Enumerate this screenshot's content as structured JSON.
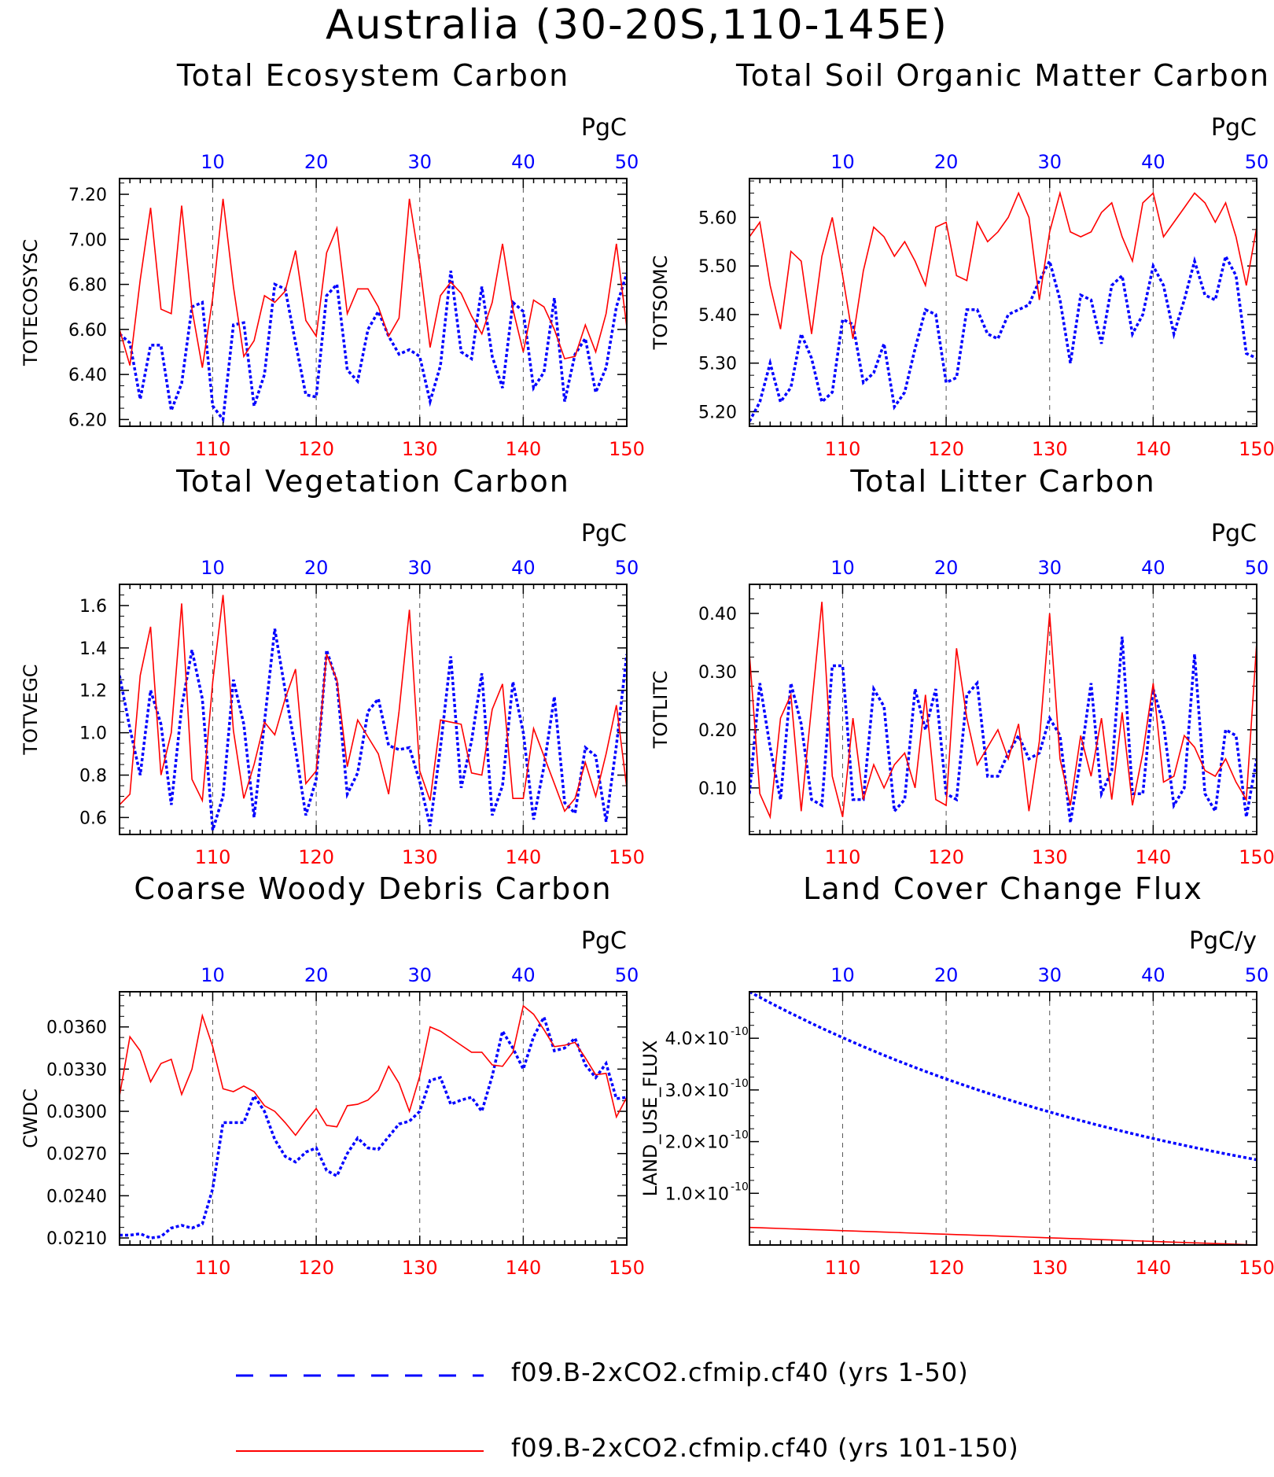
{
  "title": "Australia (30-20S,110-145E)",
  "legend": [
    {
      "label": "f09.B-2xCO2.cfmip.cf40 (yrs 1-50)",
      "color": "#0000ff",
      "style": "dashed"
    },
    {
      "label": "f09.B-2xCO2.cfmip.cf40 (yrs 101-150)",
      "color": "#ff0000",
      "style": "solid"
    }
  ],
  "colors": {
    "series_a": "#0000ff",
    "series_b": "#ff0000",
    "grid": "#555555"
  },
  "chart_data": [
    {
      "type": "line",
      "title": "Total Ecosystem Carbon",
      "ylabel": "TOTECOSYSC",
      "units": "PgC",
      "ylim": [
        6.17,
        7.27
      ],
      "yticks": [
        6.2,
        6.4,
        6.6,
        6.8,
        7.0,
        7.2
      ],
      "ytick_labels": [
        "6.20",
        "6.40",
        "6.60",
        "6.80",
        "7.00",
        "7.20"
      ],
      "top_axis": {
        "range": [
          1,
          50
        ],
        "ticks": [
          10,
          20,
          30,
          40,
          50
        ]
      },
      "bottom_axis": {
        "range": [
          101,
          150
        ],
        "ticks": [
          110,
          120,
          130,
          140,
          150
        ]
      },
      "grid": "vertical dashed at 110, 120, 130, 140",
      "series": [
        {
          "axis": "top",
          "values": [
            6.58,
            6.54,
            6.29,
            6.53,
            6.53,
            6.24,
            6.36,
            6.7,
            6.72,
            6.26,
            6.2,
            6.62,
            6.63,
            6.26,
            6.4,
            6.8,
            6.78,
            6.54,
            6.31,
            6.3,
            6.75,
            6.8,
            6.42,
            6.37,
            6.6,
            6.68,
            6.57,
            6.49,
            6.51,
            6.48,
            6.28,
            6.44,
            6.86,
            6.5,
            6.47,
            6.79,
            6.48,
            6.34,
            6.72,
            6.68,
            6.34,
            6.41,
            6.74,
            6.28,
            6.49,
            6.56,
            6.32,
            6.43,
            6.7,
            6.85
          ]
        },
        {
          "axis": "bottom",
          "values": [
            6.6,
            6.44,
            6.82,
            7.14,
            6.69,
            6.67,
            7.15,
            6.69,
            6.43,
            6.74,
            7.18,
            6.79,
            6.48,
            6.55,
            6.75,
            6.72,
            6.77,
            6.95,
            6.64,
            6.57,
            6.94,
            7.05,
            6.67,
            6.78,
            6.78,
            6.7,
            6.57,
            6.65,
            7.18,
            6.89,
            6.52,
            6.75,
            6.81,
            6.76,
            6.66,
            6.58,
            6.72,
            6.98,
            6.69,
            6.5,
            6.73,
            6.7,
            6.6,
            6.47,
            6.48,
            6.62,
            6.5,
            6.67,
            6.98,
            6.61
          ]
        }
      ]
    },
    {
      "type": "line",
      "title": "Total Soil Organic Matter Carbon",
      "ylabel": "TOTSOMC",
      "units": "PgC",
      "ylim": [
        5.17,
        5.68
      ],
      "yticks": [
        5.2,
        5.3,
        5.4,
        5.5,
        5.6
      ],
      "ytick_labels": [
        "5.20",
        "5.30",
        "5.40",
        "5.50",
        "5.60"
      ],
      "top_axis": {
        "range": [
          1,
          50
        ],
        "ticks": [
          10,
          20,
          30,
          40,
          50
        ]
      },
      "bottom_axis": {
        "range": [
          101,
          150
        ],
        "ticks": [
          110,
          120,
          130,
          140,
          150
        ]
      },
      "grid": "vertical dashed at 110, 120, 130, 140",
      "series": [
        {
          "axis": "top",
          "values": [
            5.18,
            5.22,
            5.3,
            5.22,
            5.25,
            5.36,
            5.31,
            5.22,
            5.24,
            5.39,
            5.38,
            5.26,
            5.28,
            5.34,
            5.21,
            5.24,
            5.33,
            5.41,
            5.4,
            5.26,
            5.27,
            5.41,
            5.41,
            5.36,
            5.35,
            5.4,
            5.41,
            5.42,
            5.47,
            5.51,
            5.43,
            5.3,
            5.44,
            5.43,
            5.34,
            5.46,
            5.48,
            5.36,
            5.4,
            5.5,
            5.46,
            5.36,
            5.43,
            5.51,
            5.44,
            5.43,
            5.52,
            5.48,
            5.32,
            5.31
          ]
        },
        {
          "axis": "bottom",
          "values": [
            5.56,
            5.59,
            5.46,
            5.37,
            5.53,
            5.51,
            5.36,
            5.52,
            5.6,
            5.48,
            5.35,
            5.49,
            5.58,
            5.56,
            5.52,
            5.55,
            5.51,
            5.46,
            5.58,
            5.59,
            5.48,
            5.47,
            5.59,
            5.55,
            5.57,
            5.6,
            5.65,
            5.6,
            5.43,
            5.57,
            5.65,
            5.57,
            5.56,
            5.57,
            5.61,
            5.63,
            5.56,
            5.51,
            5.63,
            5.65,
            5.56,
            5.59,
            5.62,
            5.65,
            5.63,
            5.59,
            5.63,
            5.56,
            5.46,
            5.58
          ]
        }
      ]
    },
    {
      "type": "line",
      "title": "Total Vegetation Carbon",
      "ylabel": "TOTVEGC",
      "units": "PgC",
      "ylim": [
        0.52,
        1.7
      ],
      "yticks": [
        0.6,
        0.8,
        1.0,
        1.2,
        1.4,
        1.6
      ],
      "ytick_labels": [
        "0.6",
        "0.8",
        "1.0",
        "1.2",
        "1.4",
        "1.6"
      ],
      "top_axis": {
        "range": [
          1,
          50
        ],
        "ticks": [
          10,
          20,
          30,
          40,
          50
        ]
      },
      "bottom_axis": {
        "range": [
          101,
          150
        ],
        "ticks": [
          110,
          120,
          130,
          140,
          150
        ]
      },
      "grid": "vertical dashed at 110, 120, 130, 140",
      "series": [
        {
          "axis": "top",
          "values": [
            1.27,
            1.02,
            0.8,
            1.2,
            1.04,
            0.66,
            1.12,
            1.39,
            1.16,
            0.54,
            0.7,
            1.25,
            1.04,
            0.6,
            1.05,
            1.49,
            1.2,
            0.92,
            0.61,
            0.78,
            1.39,
            1.24,
            0.71,
            0.81,
            1.1,
            1.16,
            0.94,
            0.92,
            0.93,
            0.77,
            0.56,
            0.93,
            1.36,
            0.74,
            0.96,
            1.28,
            0.61,
            0.75,
            1.24,
            1.0,
            0.59,
            0.84,
            1.17,
            0.67,
            0.62,
            0.93,
            0.89,
            0.58,
            0.94,
            1.37
          ]
        },
        {
          "axis": "bottom",
          "values": [
            0.66,
            0.71,
            1.27,
            1.5,
            0.8,
            1.0,
            1.61,
            0.78,
            0.68,
            1.24,
            1.65,
            1.01,
            0.69,
            0.85,
            1.05,
            0.99,
            1.16,
            1.3,
            0.76,
            0.82,
            1.37,
            1.25,
            0.84,
            1.06,
            0.98,
            0.9,
            0.71,
            1.1,
            1.58,
            0.82,
            0.68,
            1.06,
            1.05,
            1.04,
            0.81,
            0.8,
            1.11,
            1.23,
            0.69,
            0.69,
            1.02,
            0.89,
            0.76,
            0.63,
            0.69,
            0.86,
            0.7,
            0.9,
            1.13,
            0.74
          ]
        }
      ]
    },
    {
      "type": "line",
      "title": "Total Litter Carbon",
      "ylabel": "TOTLITC",
      "units": "PgC",
      "ylim": [
        0.02,
        0.45
      ],
      "yticks": [
        0.1,
        0.2,
        0.3,
        0.4
      ],
      "ytick_labels": [
        "0.10",
        "0.20",
        "0.30",
        "0.40"
      ],
      "top_axis": {
        "range": [
          1,
          50
        ],
        "ticks": [
          10,
          20,
          30,
          40,
          50
        ]
      },
      "bottom_axis": {
        "range": [
          101,
          150
        ],
        "ticks": [
          110,
          120,
          130,
          140,
          150
        ]
      },
      "grid": "vertical dashed at 110, 120, 130, 140",
      "series": [
        {
          "axis": "top",
          "values": [
            0.09,
            0.28,
            0.17,
            0.08,
            0.28,
            0.21,
            0.08,
            0.07,
            0.31,
            0.31,
            0.08,
            0.08,
            0.27,
            0.24,
            0.06,
            0.08,
            0.27,
            0.2,
            0.27,
            0.09,
            0.08,
            0.26,
            0.28,
            0.12,
            0.12,
            0.16,
            0.19,
            0.15,
            0.16,
            0.22,
            0.19,
            0.04,
            0.15,
            0.28,
            0.09,
            0.13,
            0.36,
            0.09,
            0.09,
            0.27,
            0.21,
            0.07,
            0.1,
            0.33,
            0.09,
            0.06,
            0.2,
            0.19,
            0.05,
            0.15
          ]
        },
        {
          "axis": "bottom",
          "values": [
            0.33,
            0.09,
            0.05,
            0.22,
            0.26,
            0.06,
            0.24,
            0.42,
            0.12,
            0.05,
            0.22,
            0.08,
            0.14,
            0.1,
            0.14,
            0.16,
            0.1,
            0.26,
            0.08,
            0.07,
            0.34,
            0.22,
            0.14,
            0.17,
            0.2,
            0.15,
            0.21,
            0.06,
            0.18,
            0.4,
            0.15,
            0.07,
            0.19,
            0.12,
            0.22,
            0.08,
            0.23,
            0.07,
            0.16,
            0.28,
            0.11,
            0.12,
            0.19,
            0.17,
            0.13,
            0.12,
            0.15,
            0.11,
            0.08,
            0.35
          ]
        }
      ]
    },
    {
      "type": "line",
      "title": "Coarse Woody Debris Carbon",
      "ylabel": "CWDC",
      "units": "PgC",
      "ylim": [
        0.0205,
        0.0385
      ],
      "yticks": [
        0.021,
        0.024,
        0.027,
        0.03,
        0.033,
        0.036
      ],
      "ytick_labels": [
        "0.0210",
        "0.0240",
        "0.0270",
        "0.0300",
        "0.0330",
        "0.0360"
      ],
      "top_axis": {
        "range": [
          1,
          50
        ],
        "ticks": [
          10,
          20,
          30,
          40,
          50
        ]
      },
      "bottom_axis": {
        "range": [
          101,
          150
        ],
        "ticks": [
          110,
          120,
          130,
          140,
          150
        ]
      },
      "grid": "vertical dashed at 110, 120, 130, 140",
      "series": [
        {
          "axis": "top",
          "values": [
            0.0212,
            0.0212,
            0.0213,
            0.021,
            0.0211,
            0.0217,
            0.0219,
            0.0217,
            0.022,
            0.0245,
            0.0292,
            0.0292,
            0.0292,
            0.0311,
            0.03,
            0.028,
            0.0268,
            0.0264,
            0.0271,
            0.0274,
            0.0258,
            0.0254,
            0.027,
            0.0281,
            0.0274,
            0.0273,
            0.0282,
            0.0291,
            0.0293,
            0.03,
            0.0322,
            0.0324,
            0.0305,
            0.0308,
            0.031,
            0.03,
            0.0325,
            0.0357,
            0.0345,
            0.033,
            0.0353,
            0.0367,
            0.0343,
            0.0345,
            0.0352,
            0.0333,
            0.0324,
            0.0334,
            0.0309,
            0.031
          ]
        },
        {
          "axis": "bottom",
          "values": [
            0.0311,
            0.0353,
            0.0343,
            0.0321,
            0.0334,
            0.0337,
            0.0312,
            0.033,
            0.0368,
            0.0346,
            0.0316,
            0.0314,
            0.0318,
            0.0314,
            0.0304,
            0.03,
            0.0292,
            0.0283,
            0.0293,
            0.0302,
            0.029,
            0.0289,
            0.0304,
            0.0305,
            0.0308,
            0.0315,
            0.0332,
            0.032,
            0.03,
            0.0325,
            0.036,
            0.0357,
            0.0352,
            0.0347,
            0.0342,
            0.0342,
            0.0333,
            0.0332,
            0.0342,
            0.0375,
            0.0369,
            0.0358,
            0.0346,
            0.0347,
            0.0349,
            0.0338,
            0.0326,
            0.0327,
            0.0296,
            0.031
          ]
        }
      ]
    },
    {
      "type": "line",
      "title": "Land Cover Change Flux",
      "ylabel": "LAND_USE_FLUX",
      "units": "PgC/y",
      "ylim": [
        0,
        4.9e-10
      ],
      "yticks": [
        1e-10,
        2e-10,
        3e-10,
        4e-10
      ],
      "ytick_labels": [
        "1.0",
        "2.0",
        "3.0",
        "4.0"
      ],
      "ytick_suffix": "×10",
      "ytick_exponent": "-10",
      "top_axis": {
        "range": [
          1,
          50
        ],
        "ticks": [
          10,
          20,
          30,
          40,
          50
        ]
      },
      "bottom_axis": {
        "range": [
          101,
          150
        ],
        "ticks": [
          110,
          120,
          130,
          140,
          150
        ]
      },
      "grid": "vertical dashed at 110, 120, 130, 140",
      "series": [
        {
          "axis": "top",
          "function": "exponential decay",
          "start": 4.9e-10,
          "end": 1.65e-10,
          "x_start": 1,
          "x_end": 50
        },
        {
          "axis": "bottom",
          "function": "linear",
          "start": 3.4e-11,
          "end": 0.0,
          "x_start": 101,
          "x_end": 150
        }
      ]
    }
  ]
}
